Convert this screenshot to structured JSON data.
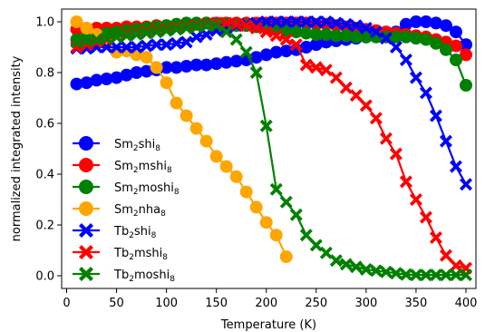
{
  "chart_data": {
    "type": "line",
    "xlabel": "Temperature (K)",
    "ylabel": "normalized integrated intensity",
    "xlim": [
      -5,
      410
    ],
    "ylim": [
      -0.05,
      1.05
    ],
    "xticks": [
      0,
      50,
      100,
      150,
      200,
      250,
      300,
      350,
      400
    ],
    "yticks": [
      0.0,
      0.2,
      0.4,
      0.6,
      0.8,
      1.0
    ],
    "xtick_labels": [
      "0",
      "50",
      "100",
      "150",
      "200",
      "250",
      "300",
      "350",
      "400"
    ],
    "ytick_labels": [
      "0.0",
      "0.2",
      "0.4",
      "0.6",
      "0.8",
      "1.0"
    ],
    "grid": false,
    "legend_position": "center-left",
    "series": [
      {
        "name": "Sm2shi8",
        "base": "Sm",
        "sub1": "2",
        "mid": "shi",
        "sub2": "8",
        "color": "#0000ff",
        "marker": "circle",
        "x": [
          10,
          20,
          30,
          40,
          50,
          60,
          70,
          80,
          90,
          100,
          110,
          120,
          130,
          140,
          150,
          160,
          170,
          180,
          190,
          200,
          210,
          220,
          230,
          240,
          250,
          260,
          270,
          280,
          290,
          300,
          310,
          320,
          330,
          340,
          350,
          360,
          370,
          380,
          390,
          400
        ],
        "y": [
          0.755,
          0.76,
          0.77,
          0.775,
          0.78,
          0.79,
          0.8,
          0.805,
          0.81,
          0.82,
          0.82,
          0.825,
          0.83,
          0.83,
          0.835,
          0.84,
          0.845,
          0.85,
          0.86,
          0.87,
          0.88,
          0.885,
          0.89,
          0.9,
          0.91,
          0.92,
          0.925,
          0.93,
          0.935,
          0.94,
          0.945,
          0.95,
          0.96,
          0.99,
          1.0,
          1.0,
          0.995,
          0.985,
          0.96,
          0.91
        ]
      },
      {
        "name": "Sm2mshi8",
        "base": "Sm",
        "sub1": "2",
        "mid": "mshi",
        "sub2": "8",
        "color": "#ff0000",
        "marker": "circle",
        "x": [
          10,
          20,
          30,
          40,
          50,
          60,
          70,
          80,
          90,
          100,
          110,
          120,
          130,
          140,
          150,
          160,
          170,
          180,
          190,
          200,
          210,
          220,
          230,
          240,
          250,
          260,
          270,
          280,
          290,
          300,
          310,
          320,
          330,
          340,
          350,
          360,
          370,
          380,
          390,
          400
        ],
        "y": [
          0.97,
          0.97,
          0.975,
          0.975,
          0.975,
          0.98,
          0.98,
          0.98,
          0.985,
          0.985,
          0.99,
          0.99,
          0.99,
          0.995,
          0.995,
          0.995,
          0.995,
          0.995,
          0.995,
          0.995,
          0.995,
          0.995,
          0.995,
          0.995,
          0.99,
          0.99,
          0.985,
          0.98,
          0.975,
          0.97,
          0.965,
          0.96,
          0.955,
          0.95,
          0.945,
          0.94,
          0.93,
          0.92,
          0.905,
          0.87
        ]
      },
      {
        "name": "Sm2moshi8",
        "base": "Sm",
        "sub1": "2",
        "mid": "moshi",
        "sub2": "8",
        "color": "#008000",
        "marker": "circle",
        "x": [
          10,
          20,
          30,
          40,
          50,
          60,
          70,
          80,
          90,
          100,
          110,
          120,
          130,
          140,
          150,
          160,
          170,
          180,
          190,
          200,
          210,
          220,
          230,
          240,
          250,
          260,
          270,
          280,
          290,
          300,
          310,
          320,
          330,
          340,
          350,
          360,
          370,
          380,
          390,
          400
        ],
        "y": [
          0.93,
          0.94,
          0.95,
          0.955,
          0.96,
          0.965,
          0.97,
          0.975,
          0.98,
          0.985,
          0.99,
          0.995,
          0.995,
          0.995,
          0.99,
          0.99,
          0.985,
          0.985,
          0.98,
          0.975,
          0.97,
          0.965,
          0.96,
          0.955,
          0.95,
          0.95,
          0.945,
          0.945,
          0.94,
          0.94,
          0.94,
          0.94,
          0.94,
          0.94,
          0.935,
          0.93,
          0.915,
          0.89,
          0.85,
          0.75
        ]
      },
      {
        "name": "Sm2nha8",
        "base": "Sm",
        "sub1": "2",
        "mid": "nha",
        "sub2": "8",
        "color": "#ffa500",
        "marker": "circle",
        "x": [
          10,
          20,
          30,
          40,
          50,
          60,
          70,
          80,
          90,
          100,
          110,
          120,
          130,
          140,
          150,
          160,
          170,
          180,
          190,
          200,
          210,
          220
        ],
        "y": [
          1.0,
          0.975,
          0.95,
          0.92,
          0.88,
          0.885,
          0.87,
          0.86,
          0.82,
          0.76,
          0.68,
          0.63,
          0.58,
          0.53,
          0.47,
          0.43,
          0.39,
          0.33,
          0.27,
          0.21,
          0.16,
          0.075
        ]
      },
      {
        "name": "Tb2shi8",
        "base": "Tb",
        "sub1": "2",
        "mid": "shi",
        "sub2": "8",
        "color": "#0000ff",
        "marker": "x",
        "x": [
          10,
          20,
          30,
          40,
          50,
          60,
          70,
          80,
          90,
          100,
          110,
          120,
          130,
          140,
          150,
          160,
          170,
          180,
          190,
          200,
          210,
          220,
          230,
          240,
          250,
          260,
          270,
          280,
          290,
          300,
          310,
          320,
          330,
          340,
          350,
          360,
          370,
          380,
          390,
          400
        ],
        "y": [
          0.895,
          0.895,
          0.9,
          0.9,
          0.9,
          0.9,
          0.9,
          0.905,
          0.91,
          0.91,
          0.915,
          0.92,
          0.94,
          0.95,
          0.965,
          0.975,
          0.985,
          0.99,
          0.995,
          1.0,
          1.0,
          1.0,
          1.0,
          1.0,
          1.0,
          1.0,
          0.995,
          0.99,
          0.985,
          0.975,
          0.96,
          0.935,
          0.9,
          0.85,
          0.78,
          0.72,
          0.63,
          0.53,
          0.43,
          0.36
        ]
      },
      {
        "name": "Tb2mshi8",
        "base": "Tb",
        "sub1": "2",
        "mid": "mshi",
        "sub2": "8",
        "color": "#ff0000",
        "marker": "x",
        "x": [
          10,
          20,
          30,
          40,
          50,
          60,
          70,
          80,
          90,
          100,
          110,
          120,
          130,
          140,
          150,
          160,
          170,
          180,
          190,
          200,
          210,
          220,
          230,
          240,
          250,
          260,
          270,
          280,
          290,
          300,
          310,
          320,
          330,
          340,
          350,
          360,
          370,
          380,
          390,
          400
        ],
        "y": [
          0.9,
          0.91,
          0.92,
          0.93,
          0.94,
          0.95,
          0.955,
          0.96,
          0.965,
          0.97,
          0.975,
          0.98,
          0.985,
          0.99,
          0.995,
          0.995,
          0.99,
          0.985,
          0.975,
          0.96,
          0.945,
          0.93,
          0.91,
          0.83,
          0.82,
          0.81,
          0.78,
          0.74,
          0.71,
          0.67,
          0.62,
          0.54,
          0.48,
          0.37,
          0.3,
          0.23,
          0.15,
          0.08,
          0.04,
          0.03
        ]
      },
      {
        "name": "Tb2moshi8",
        "base": "Tb",
        "sub1": "2",
        "mid": "moshi",
        "sub2": "8",
        "color": "#008000",
        "marker": "x",
        "x": [
          10,
          20,
          30,
          40,
          50,
          60,
          70,
          80,
          90,
          100,
          110,
          120,
          130,
          140,
          150,
          160,
          170,
          180,
          190,
          200,
          210,
          220,
          230,
          240,
          250,
          260,
          270,
          280,
          290,
          300,
          310,
          320,
          330,
          340,
          350,
          360,
          370,
          380,
          390,
          400
        ],
        "y": [
          0.92,
          0.925,
          0.93,
          0.935,
          0.94,
          0.945,
          0.95,
          0.955,
          0.96,
          0.965,
          0.97,
          0.975,
          0.98,
          0.985,
          0.985,
          0.96,
          0.93,
          0.88,
          0.8,
          0.59,
          0.34,
          0.29,
          0.24,
          0.16,
          0.12,
          0.09,
          0.06,
          0.045,
          0.035,
          0.025,
          0.02,
          0.015,
          0.01,
          0.005,
          0.003,
          0.003,
          0.003,
          0.003,
          0.003,
          0.003
        ]
      }
    ]
  }
}
